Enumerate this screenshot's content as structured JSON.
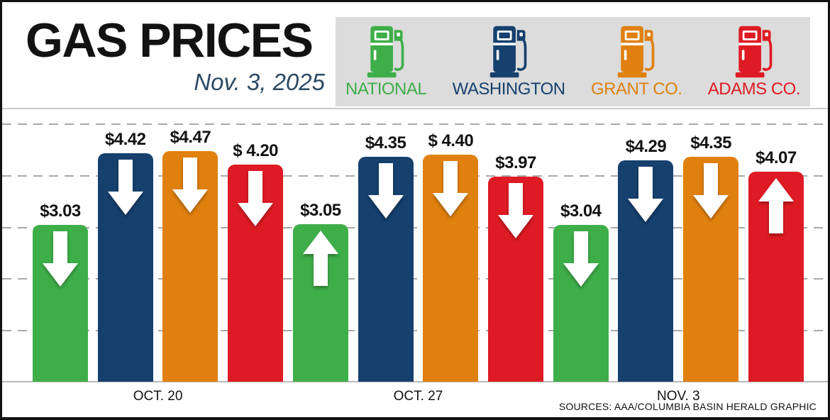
{
  "header": {
    "title": "GAS PRICES",
    "date": "Nov. 3, 2025"
  },
  "legend": {
    "items": [
      {
        "label": "NATIONAL",
        "color": "#3eae49",
        "icon": "gas-pump-icon"
      },
      {
        "label": "WASHINGTON",
        "color": "#16406e",
        "icon": "gas-pump-icon"
      },
      {
        "label": "GRANT CO.",
        "color": "#e0800f",
        "icon": "gas-pump-icon"
      },
      {
        "label": "ADAMS CO.",
        "color": "#de1b24",
        "icon": "gas-pump-icon"
      }
    ]
  },
  "chart_data": {
    "type": "bar",
    "title": "GAS PRICES",
    "date": "Nov. 3, 2025",
    "unit": "USD per gallon",
    "categories": [
      "OCT. 20",
      "OCT. 27",
      "NOV. 3"
    ],
    "series": [
      {
        "name": "NATIONAL",
        "color": "#3eae49",
        "values": [
          3.03,
          3.05,
          3.04
        ],
        "labels": [
          "$3.03",
          "$3.05",
          "$3.04"
        ],
        "trend": [
          "down",
          "up",
          "down"
        ]
      },
      {
        "name": "WASHINGTON",
        "color": "#16406e",
        "values": [
          4.42,
          4.35,
          4.29
        ],
        "labels": [
          "$4.42",
          "$4.35",
          "$4.29"
        ],
        "trend": [
          "down",
          "down",
          "down"
        ]
      },
      {
        "name": "GRANT CO.",
        "color": "#e0800f",
        "values": [
          4.47,
          4.4,
          4.35
        ],
        "labels": [
          "$4.47",
          "$ 4.40",
          "$4.35"
        ],
        "trend": [
          "down",
          "down",
          "down"
        ]
      },
      {
        "name": "ADAMS CO.",
        "color": "#de1b24",
        "values": [
          4.2,
          3.97,
          4.07
        ],
        "labels": [
          "$ 4.20",
          "$3.97",
          "$4.07"
        ],
        "trend": [
          "down",
          "down",
          "up"
        ]
      }
    ],
    "ylim": [
      0,
      5.3
    ],
    "gridlines": [
      1,
      2,
      3,
      4,
      5
    ],
    "grid_style": "dashed",
    "legend_position": "top-right"
  },
  "footer": {
    "source": "SOURCES: AAA/COLUMBIA BASIN HERALD GRAPHIC"
  }
}
